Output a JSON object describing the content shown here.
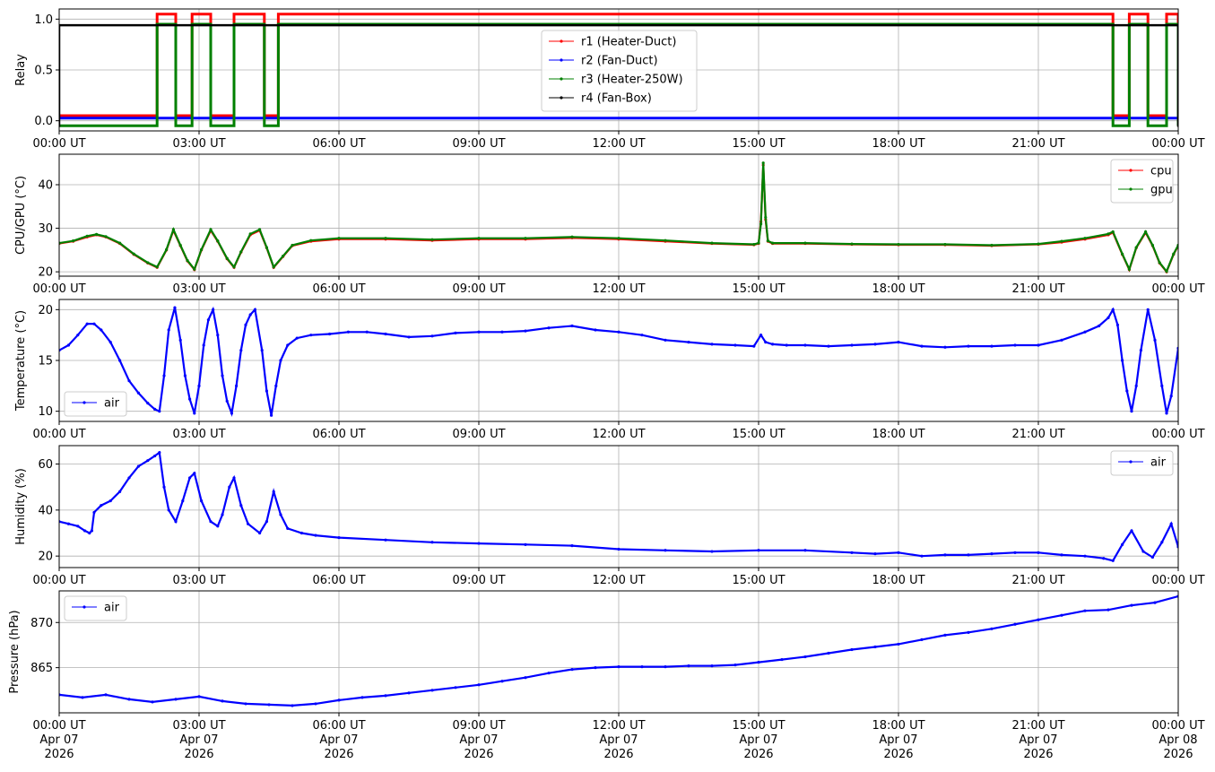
{
  "figure": {
    "title": ""
  },
  "time_axis": {
    "ticks": [
      0,
      3,
      6,
      9,
      12,
      15,
      18,
      21,
      24
    ],
    "tick_labels": [
      "00:00 UT",
      "03:00 UT",
      "06:00 UT",
      "09:00 UT",
      "12:00 UT",
      "15:00 UT",
      "18:00 UT",
      "21:00 UT",
      "00:00 UT"
    ],
    "date_lines": [
      "Apr 07",
      "Apr 07",
      "Apr 07",
      "Apr 07",
      "Apr 07",
      "Apr 07",
      "Apr 07",
      "Apr 07",
      "Apr 08"
    ],
    "year_lines": [
      "2026",
      "2026",
      "2026",
      "2026",
      "2026",
      "2026",
      "2026",
      "2026",
      "2026"
    ]
  },
  "colors": {
    "red": "#ff0000",
    "blue": "#0000ff",
    "green": "#008000",
    "black": "#000000",
    "grid": "#b0b0b0"
  },
  "chart_data": [
    {
      "type": "line",
      "ylabel": "Relay",
      "ylim": [
        -0.1,
        1.1
      ],
      "yticks": [
        0.0,
        0.5,
        1.0
      ],
      "ytick_labels": [
        "0.0",
        "0.5",
        "1.0"
      ],
      "grid": true,
      "legend_position": "top-center",
      "series": [
        {
          "name": "r1 (Heater-Duct)",
          "color": "#ff0000",
          "offset": 0.05,
          "on_intervals": [
            [
              2.1,
              2.5
            ],
            [
              2.85,
              3.25
            ],
            [
              3.75,
              4.4
            ],
            [
              4.7,
              22.6
            ],
            [
              22.95,
              23.35
            ],
            [
              23.75,
              24.0
            ]
          ]
        },
        {
          "name": "r2 (Fan-Duct)",
          "color": "#0000ff",
          "offset": 0.025,
          "on_intervals": []
        },
        {
          "name": "r3 (Heater-250W)",
          "color": "#008000",
          "offset": -0.05,
          "on_intervals": [
            [
              2.1,
              2.5
            ],
            [
              2.85,
              3.25
            ],
            [
              3.75,
              4.4
            ],
            [
              4.7,
              22.6
            ],
            [
              22.95,
              23.35
            ],
            [
              23.75,
              24.0
            ]
          ]
        },
        {
          "name": "r4 (Fan-Box)",
          "color": "#000000",
          "offset": -0.06,
          "on_intervals": [
            [
              0.0,
              24.0
            ]
          ]
        }
      ]
    },
    {
      "type": "line",
      "ylabel": "CPU/GPU (°C)",
      "ylim": [
        19,
        47
      ],
      "yticks": [
        20,
        30,
        40
      ],
      "ytick_labels": [
        "20",
        "30",
        "40"
      ],
      "grid": true,
      "legend_position": "top-right",
      "series": [
        {
          "name": "cpu",
          "color": "#ff0000",
          "x": [
            0.0,
            0.3,
            0.6,
            0.8,
            1.0,
            1.3,
            1.6,
            1.9,
            2.1,
            2.3,
            2.45,
            2.6,
            2.75,
            2.9,
            3.05,
            3.25,
            3.4,
            3.6,
            3.75,
            3.9,
            4.1,
            4.3,
            4.45,
            4.6,
            4.8,
            5.0,
            5.4,
            6.0,
            7.0,
            8.0,
            9.0,
            10.0,
            11.0,
            12.0,
            13.0,
            14.0,
            14.9,
            15.0,
            15.05,
            15.1,
            15.15,
            15.2,
            15.3,
            16.0,
            17.0,
            18.0,
            19.0,
            20.0,
            21.0,
            21.5,
            22.0,
            22.5,
            22.6,
            22.8,
            22.95,
            23.1,
            23.3,
            23.45,
            23.6,
            23.75,
            23.9,
            24.0
          ],
          "y": [
            26.5,
            27.0,
            28.0,
            28.5,
            28.0,
            26.5,
            24.0,
            22.0,
            21.0,
            25.0,
            29.5,
            26.0,
            22.5,
            20.5,
            25.0,
            29.5,
            27.0,
            23.0,
            21.0,
            24.5,
            28.5,
            29.5,
            25.5,
            21.0,
            23.5,
            26.0,
            27.0,
            27.5,
            27.5,
            27.2,
            27.5,
            27.5,
            27.8,
            27.5,
            27.0,
            26.5,
            26.2,
            26.5,
            31.5,
            44.5,
            32.0,
            27.0,
            26.5,
            26.5,
            26.3,
            26.2,
            26.2,
            26.0,
            26.3,
            26.8,
            27.5,
            28.5,
            29.0,
            24.0,
            20.5,
            25.5,
            29.0,
            26.0,
            22.0,
            20.0,
            24.0,
            26.0
          ]
        },
        {
          "name": "gpu",
          "color": "#008000",
          "x": [
            0.0,
            0.3,
            0.6,
            0.8,
            1.0,
            1.3,
            1.6,
            1.9,
            2.1,
            2.3,
            2.45,
            2.6,
            2.75,
            2.9,
            3.05,
            3.25,
            3.4,
            3.6,
            3.75,
            3.9,
            4.1,
            4.3,
            4.45,
            4.6,
            4.8,
            5.0,
            5.4,
            6.0,
            7.0,
            8.0,
            9.0,
            10.0,
            11.0,
            12.0,
            13.0,
            14.0,
            14.9,
            15.0,
            15.05,
            15.1,
            15.15,
            15.2,
            15.3,
            16.0,
            17.0,
            18.0,
            19.0,
            20.0,
            21.0,
            21.5,
            22.0,
            22.5,
            22.6,
            22.8,
            22.95,
            23.1,
            23.3,
            23.45,
            23.6,
            23.75,
            23.9,
            24.0
          ],
          "y": [
            26.6,
            27.1,
            28.2,
            28.6,
            28.1,
            26.6,
            24.1,
            22.1,
            21.1,
            25.1,
            29.7,
            26.1,
            22.6,
            20.6,
            25.1,
            29.7,
            27.1,
            23.1,
            21.1,
            24.6,
            28.7,
            29.7,
            25.6,
            21.1,
            23.6,
            26.1,
            27.2,
            27.7,
            27.7,
            27.4,
            27.7,
            27.7,
            28.0,
            27.7,
            27.2,
            26.6,
            26.3,
            26.6,
            31.0,
            45.0,
            32.5,
            27.1,
            26.6,
            26.6,
            26.4,
            26.3,
            26.3,
            26.1,
            26.4,
            27.0,
            27.7,
            28.7,
            29.2,
            24.1,
            20.6,
            25.6,
            29.2,
            26.1,
            22.1,
            20.1,
            24.1,
            26.1
          ]
        }
      ]
    },
    {
      "type": "line",
      "ylabel": "Temperature (°C)",
      "ylim": [
        9,
        21
      ],
      "yticks": [
        10,
        15,
        20
      ],
      "ytick_labels": [
        "10",
        "15",
        "20"
      ],
      "grid": true,
      "legend_position": "lower-left",
      "series": [
        {
          "name": "air",
          "color": "#0000ff",
          "x": [
            0.0,
            0.2,
            0.4,
            0.6,
            0.75,
            0.9,
            1.1,
            1.3,
            1.5,
            1.7,
            1.9,
            2.05,
            2.15,
            2.25,
            2.35,
            2.48,
            2.6,
            2.7,
            2.8,
            2.9,
            3.0,
            3.1,
            3.2,
            3.3,
            3.4,
            3.5,
            3.6,
            3.7,
            3.8,
            3.9,
            4.0,
            4.1,
            4.2,
            4.35,
            4.45,
            4.55,
            4.65,
            4.75,
            4.9,
            5.1,
            5.4,
            5.8,
            6.2,
            6.6,
            7.0,
            7.5,
            8.0,
            8.5,
            9.0,
            9.5,
            10.0,
            10.5,
            11.0,
            11.5,
            12.0,
            12.5,
            13.0,
            13.5,
            14.0,
            14.5,
            14.9,
            15.05,
            15.15,
            15.3,
            15.6,
            16.0,
            16.5,
            17.0,
            17.5,
            18.0,
            18.5,
            19.0,
            19.5,
            20.0,
            20.5,
            21.0,
            21.5,
            22.0,
            22.3,
            22.5,
            22.6,
            22.7,
            22.8,
            22.9,
            23.0,
            23.1,
            23.2,
            23.35,
            23.5,
            23.65,
            23.75,
            23.85,
            24.0
          ],
          "y": [
            16.0,
            16.5,
            17.5,
            18.6,
            18.6,
            18.0,
            16.8,
            15.0,
            13.0,
            11.8,
            10.8,
            10.2,
            10.0,
            13.5,
            18.0,
            20.2,
            17.0,
            13.5,
            11.2,
            9.8,
            12.5,
            16.5,
            19.0,
            20.0,
            17.5,
            13.5,
            11.0,
            9.8,
            12.5,
            16.0,
            18.5,
            19.5,
            20.0,
            16.0,
            12.0,
            9.6,
            12.5,
            15.0,
            16.5,
            17.2,
            17.5,
            17.6,
            17.8,
            17.8,
            17.6,
            17.3,
            17.4,
            17.7,
            17.8,
            17.8,
            17.9,
            18.2,
            18.4,
            18.0,
            17.8,
            17.5,
            17.0,
            16.8,
            16.6,
            16.5,
            16.4,
            17.5,
            16.8,
            16.6,
            16.5,
            16.5,
            16.4,
            16.5,
            16.6,
            16.8,
            16.4,
            16.3,
            16.4,
            16.4,
            16.5,
            16.5,
            17.0,
            17.8,
            18.4,
            19.2,
            20.0,
            18.5,
            15.0,
            12.0,
            10.0,
            12.5,
            16.0,
            20.0,
            17.0,
            12.5,
            9.8,
            11.5,
            16.2
          ]
        }
      ]
    },
    {
      "type": "line",
      "ylabel": "Humidity (%)",
      "ylim": [
        15,
        68
      ],
      "yticks": [
        20,
        40,
        60
      ],
      "ytick_labels": [
        "20",
        "40",
        "60"
      ],
      "grid": true,
      "legend_position": "top-right",
      "series": [
        {
          "name": "air",
          "color": "#0000ff",
          "x": [
            0.0,
            0.2,
            0.4,
            0.55,
            0.65,
            0.7,
            0.75,
            0.9,
            1.1,
            1.3,
            1.5,
            1.7,
            1.9,
            2.05,
            2.15,
            2.25,
            2.35,
            2.5,
            2.65,
            2.8,
            2.9,
            3.05,
            3.25,
            3.4,
            3.5,
            3.65,
            3.75,
            3.9,
            4.05,
            4.3,
            4.45,
            4.6,
            4.75,
            4.9,
            5.2,
            5.5,
            6.0,
            7.0,
            8.0,
            9.0,
            10.0,
            11.0,
            12.0,
            13.0,
            14.0,
            15.0,
            16.0,
            17.0,
            17.5,
            18.0,
            18.5,
            19.0,
            19.5,
            20.0,
            20.5,
            21.0,
            21.5,
            22.0,
            22.4,
            22.6,
            22.8,
            23.0,
            23.25,
            23.45,
            23.65,
            23.85,
            24.0
          ],
          "y": [
            35.0,
            34.0,
            33.0,
            31.0,
            30.0,
            31.0,
            39.0,
            42.0,
            44.0,
            48.0,
            54.0,
            59.0,
            61.5,
            63.5,
            65.0,
            50.0,
            40.0,
            35.0,
            44.0,
            54.0,
            56.0,
            44.0,
            35.0,
            33.0,
            38.0,
            50.0,
            54.0,
            42.0,
            34.0,
            30.0,
            35.0,
            48.0,
            38.0,
            32.0,
            30.0,
            29.0,
            28.0,
            27.0,
            26.0,
            25.5,
            25.0,
            24.5,
            23.0,
            22.5,
            22.0,
            22.5,
            22.5,
            21.5,
            21.0,
            21.5,
            20.0,
            20.5,
            20.5,
            21.0,
            21.5,
            21.5,
            20.5,
            20.0,
            19.0,
            18.0,
            25.0,
            31.0,
            22.0,
            19.5,
            26.0,
            34.0,
            24.0
          ]
        }
      ]
    },
    {
      "type": "line",
      "ylabel": "Pressure (hPa)",
      "ylim": [
        860.0,
        873.5
      ],
      "yticks": [
        865,
        870
      ],
      "ytick_labels": [
        "865",
        "870"
      ],
      "grid": true,
      "legend_position": "top-left",
      "series": [
        {
          "name": "air",
          "color": "#0000ff",
          "x": [
            0.0,
            0.5,
            1.0,
            1.5,
            2.0,
            2.5,
            3.0,
            3.5,
            4.0,
            4.5,
            5.0,
            5.5,
            6.0,
            6.5,
            7.0,
            7.5,
            8.0,
            8.5,
            9.0,
            9.5,
            10.0,
            10.5,
            11.0,
            11.5,
            12.0,
            12.5,
            13.0,
            13.5,
            14.0,
            14.5,
            15.0,
            15.5,
            16.0,
            16.5,
            17.0,
            17.5,
            18.0,
            18.5,
            19.0,
            19.5,
            20.0,
            20.5,
            21.0,
            21.5,
            22.0,
            22.5,
            23.0,
            23.5,
            24.0
          ],
          "y": [
            862.0,
            861.7,
            862.0,
            861.5,
            861.2,
            861.5,
            861.8,
            861.3,
            861.0,
            860.9,
            860.8,
            861.0,
            861.4,
            861.7,
            861.9,
            862.2,
            862.5,
            862.8,
            863.1,
            863.5,
            863.9,
            864.4,
            864.8,
            865.0,
            865.1,
            865.1,
            865.1,
            865.2,
            865.2,
            865.3,
            865.6,
            865.9,
            866.2,
            866.6,
            867.0,
            867.3,
            867.6,
            868.1,
            868.6,
            868.9,
            869.3,
            869.8,
            870.3,
            870.8,
            871.3,
            871.4,
            871.9,
            872.2,
            872.9
          ]
        }
      ]
    }
  ]
}
